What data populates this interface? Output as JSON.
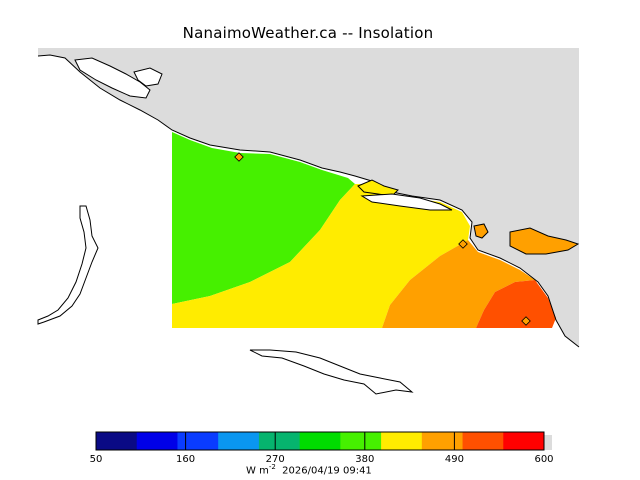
{
  "title": "NanaimoWeather.ca -- Insolation",
  "legend": {
    "colors": [
      "#0a0a85",
      "#0000e8",
      "#0a3cff",
      "#0a96f0",
      "#06b46e",
      "#00dc00",
      "#46f000",
      "#ffec00",
      "#ffa000",
      "#ff5000",
      "#ff0000",
      "#dcdcdc"
    ],
    "ticks": [
      "50",
      "160",
      "270",
      "380",
      "490",
      "600"
    ],
    "tick_values": [
      50,
      160,
      270,
      380,
      490,
      600
    ],
    "units_prefix": "W m",
    "units_exp": "-2",
    "timestamp": "2026/04/19 09:41"
  },
  "colors": {
    "land": "#dcdcdc",
    "water": "#ffffff",
    "green": "#46f000",
    "yellow": "#ffec00",
    "orange": "#ffa000",
    "darkorange": "#ff5000"
  }
}
